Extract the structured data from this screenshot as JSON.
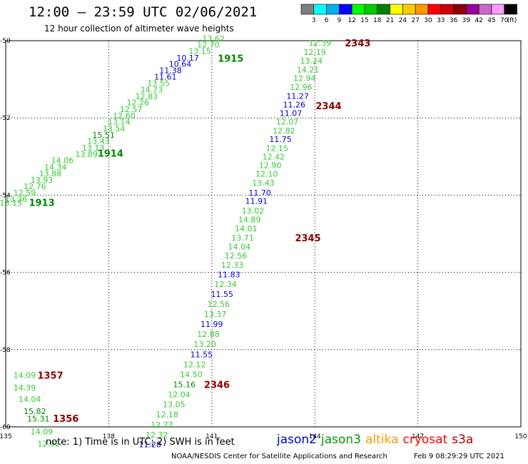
{
  "header": {
    "title": "12:00 — 23:59 UTC 02/06/2021",
    "subtitle": "12 hour collection of altimeter wave heights"
  },
  "footer": {
    "note": "note: 1) Time is in UTC; 2) SWH is in feet",
    "credit": "NOAA/NESDIS Center for Satellite Applications and Research",
    "timestamp": "Feb  9 08:29:29 UTC 2021"
  },
  "legend": {
    "satellites": [
      {
        "name": "jason2",
        "color": "#0000cc"
      },
      {
        "name": "jason3",
        "color": "#009900"
      },
      {
        "name": "altika",
        "color": "#ff9900"
      },
      {
        "name": "cryosat",
        "color": "#ff0000"
      },
      {
        "name": "s3a",
        "color": "#aa0000"
      }
    ]
  },
  "color_scale": {
    "labels": [
      "3",
      "6",
      "9",
      "12",
      "15",
      "18",
      "21",
      "24",
      "27",
      "30",
      "33",
      "36",
      "39",
      "42",
      "45",
      "70",
      "(ft)"
    ],
    "colors": [
      "#7f7f7f",
      "#00ffff",
      "#00b0f0",
      "#0000ff",
      "#00ff00",
      "#00cc00",
      "#008000",
      "#ffff00",
      "#ffcc00",
      "#ff9900",
      "#ff0000",
      "#cc0000",
      "#8b0000",
      "#990099",
      "#cc66cc",
      "#ff99ff",
      "#000000"
    ]
  },
  "chart_data": {
    "type": "scatter",
    "xlim": [
      135,
      150
    ],
    "ylim": [
      -60,
      -50
    ],
    "x_ticks": [
      {
        "v": 135,
        "label": "135"
      },
      {
        "v": 138,
        "label": "138"
      },
      {
        "v": 141,
        "label": "141"
      },
      {
        "v": 144,
        "label": "144"
      },
      {
        "v": 147,
        "label": "147"
      },
      {
        "v": 150,
        "label": "150"
      }
    ],
    "y_ticks": [
      {
        "v": -50,
        "label": "-50"
      },
      {
        "v": -52,
        "label": "-52"
      },
      {
        "v": -54,
        "label": "-54"
      },
      {
        "v": -56,
        "label": "-56"
      },
      {
        "v": -58,
        "label": "-58"
      },
      {
        "v": -60,
        "label": "-60"
      }
    ],
    "grid": true,
    "point_colors": {
      "g": "#33cc33",
      "b": "#0000cc",
      "dg": "#008800",
      "dr": "#880000"
    },
    "points": [
      {
        "x": 141.05,
        "y": -49.94,
        "t": "13.62",
        "c": "g"
      },
      {
        "x": 140.9,
        "y": -50.1,
        "t": "12.70",
        "c": "g"
      },
      {
        "x": 140.65,
        "y": -50.27,
        "t": "13.15",
        "c": "g"
      },
      {
        "x": 140.3,
        "y": -50.44,
        "t": "10.17",
        "c": "b"
      },
      {
        "x": 140.08,
        "y": -50.6,
        "t": "10.64",
        "c": "b"
      },
      {
        "x": 139.8,
        "y": -50.77,
        "t": "11.38",
        "c": "b"
      },
      {
        "x": 139.65,
        "y": -50.93,
        "t": "11.61",
        "c": "b"
      },
      {
        "x": 139.45,
        "y": -51.1,
        "t": "13.55",
        "c": "g"
      },
      {
        "x": 139.25,
        "y": -51.27,
        "t": "14.73",
        "c": "g"
      },
      {
        "x": 139.1,
        "y": -51.44,
        "t": "12.83",
        "c": "g"
      },
      {
        "x": 138.85,
        "y": -51.6,
        "t": "12.26",
        "c": "g"
      },
      {
        "x": 138.65,
        "y": -51.77,
        "t": "12.57",
        "c": "g"
      },
      {
        "x": 138.45,
        "y": -51.94,
        "t": "12.60",
        "c": "g"
      },
      {
        "x": 138.3,
        "y": -52.1,
        "t": "13.14",
        "c": "g"
      },
      {
        "x": 138.15,
        "y": -52.27,
        "t": "13.54",
        "c": "g"
      },
      {
        "x": 137.85,
        "y": -52.44,
        "t": "15.51",
        "c": "dg"
      },
      {
        "x": 137.7,
        "y": -52.6,
        "t": "13.43",
        "c": "g"
      },
      {
        "x": 137.55,
        "y": -52.77,
        "t": "13.13",
        "c": "g"
      },
      {
        "x": 137.35,
        "y": -52.94,
        "t": "13.89",
        "c": "g"
      },
      {
        "x": 136.65,
        "y": -53.1,
        "t": "14.06",
        "c": "g"
      },
      {
        "x": 136.45,
        "y": -53.27,
        "t": "14.34",
        "c": "g"
      },
      {
        "x": 136.3,
        "y": -53.44,
        "t": "13.88",
        "c": "g"
      },
      {
        "x": 136.05,
        "y": -53.6,
        "t": "13.93",
        "c": "g"
      },
      {
        "x": 135.85,
        "y": -53.77,
        "t": "12.76",
        "c": "g"
      },
      {
        "x": 135.55,
        "y": -53.94,
        "t": "12.59",
        "c": "g"
      },
      {
        "x": 135.3,
        "y": -54.1,
        "t": "13.36",
        "c": "g"
      },
      {
        "x": 135.15,
        "y": -54.2,
        "t": "13.15",
        "c": "g"
      },
      {
        "x": 144.15,
        "y": -50.06,
        "t": "12.39",
        "c": "g"
      },
      {
        "x": 144.0,
        "y": -50.3,
        "t": "12.19",
        "c": "g"
      },
      {
        "x": 143.9,
        "y": -50.52,
        "t": "13.24",
        "c": "g"
      },
      {
        "x": 143.8,
        "y": -50.75,
        "t": "14.21",
        "c": "g"
      },
      {
        "x": 143.7,
        "y": -50.97,
        "t": "12.94",
        "c": "g"
      },
      {
        "x": 143.6,
        "y": -51.2,
        "t": "12.96",
        "c": "g"
      },
      {
        "x": 143.5,
        "y": -51.43,
        "t": "11.27",
        "c": "b"
      },
      {
        "x": 143.4,
        "y": -51.65,
        "t": "11.26",
        "c": "b"
      },
      {
        "x": 143.3,
        "y": -51.88,
        "t": "11.07",
        "c": "b"
      },
      {
        "x": 143.2,
        "y": -52.1,
        "t": "12.07",
        "c": "g"
      },
      {
        "x": 143.1,
        "y": -52.33,
        "t": "12.82",
        "c": "g"
      },
      {
        "x": 143.0,
        "y": -52.55,
        "t": "11.75",
        "c": "b"
      },
      {
        "x": 142.9,
        "y": -52.78,
        "t": "12.15",
        "c": "g"
      },
      {
        "x": 142.8,
        "y": -53.0,
        "t": "12.42",
        "c": "g"
      },
      {
        "x": 142.7,
        "y": -53.23,
        "t": "12.90",
        "c": "g"
      },
      {
        "x": 142.6,
        "y": -53.45,
        "t": "12.10",
        "c": "g"
      },
      {
        "x": 142.5,
        "y": -53.68,
        "t": "13.43",
        "c": "g"
      },
      {
        "x": 142.4,
        "y": -53.94,
        "t": "11.70",
        "c": "b"
      },
      {
        "x": 142.3,
        "y": -54.15,
        "t": "11.91",
        "c": "b"
      },
      {
        "x": 142.2,
        "y": -54.4,
        "t": "13.02",
        "c": "g"
      },
      {
        "x": 142.1,
        "y": -54.63,
        "t": "14.89",
        "c": "g"
      },
      {
        "x": 142.0,
        "y": -54.86,
        "t": "14.01",
        "c": "g"
      },
      {
        "x": 141.9,
        "y": -55.1,
        "t": "13.71",
        "c": "g"
      },
      {
        "x": 141.8,
        "y": -55.33,
        "t": "14.04",
        "c": "g"
      },
      {
        "x": 141.7,
        "y": -55.56,
        "t": "12.56",
        "c": "g"
      },
      {
        "x": 141.6,
        "y": -55.8,
        "t": "12.33",
        "c": "g"
      },
      {
        "x": 141.5,
        "y": -56.05,
        "t": "11.83",
        "c": "b"
      },
      {
        "x": 141.4,
        "y": -56.3,
        "t": "12.34",
        "c": "g"
      },
      {
        "x": 141.3,
        "y": -56.56,
        "t": "11.55",
        "c": "b"
      },
      {
        "x": 141.2,
        "y": -56.82,
        "t": "12.56",
        "c": "g"
      },
      {
        "x": 141.1,
        "y": -57.08,
        "t": "13.37",
        "c": "g"
      },
      {
        "x": 141.0,
        "y": -57.34,
        "t": "11.99",
        "c": "b"
      },
      {
        "x": 140.9,
        "y": -57.6,
        "t": "12.88",
        "c": "g"
      },
      {
        "x": 140.8,
        "y": -57.86,
        "t": "13.20",
        "c": "g"
      },
      {
        "x": 140.7,
        "y": -58.12,
        "t": "11.55",
        "c": "b"
      },
      {
        "x": 140.5,
        "y": -58.38,
        "t": "12.12",
        "c": "g"
      },
      {
        "x": 140.4,
        "y": -58.64,
        "t": "14.50",
        "c": "g"
      },
      {
        "x": 140.2,
        "y": -58.9,
        "t": "15.16",
        "c": "dg"
      },
      {
        "x": 140.05,
        "y": -59.16,
        "t": "12.04",
        "c": "g"
      },
      {
        "x": 139.9,
        "y": -59.42,
        "t": "13.05",
        "c": "g"
      },
      {
        "x": 139.7,
        "y": -59.68,
        "t": "12.18",
        "c": "g"
      },
      {
        "x": 139.55,
        "y": -59.94,
        "t": "12.77",
        "c": "g"
      },
      {
        "x": 139.4,
        "y": -60.2,
        "t": "12.32",
        "c": "g"
      },
      {
        "x": 139.2,
        "y": -60.45,
        "t": "11.28",
        "c": "b"
      },
      {
        "x": 135.55,
        "y": -58.66,
        "t": "14.09",
        "c": "g"
      },
      {
        "x": 135.55,
        "y": -58.98,
        "t": "14.39",
        "c": "g"
      },
      {
        "x": 135.7,
        "y": -59.28,
        "t": "14.04",
        "c": "g"
      },
      {
        "x": 135.85,
        "y": -59.59,
        "t": "15.82",
        "c": "dg"
      },
      {
        "x": 135.95,
        "y": -59.79,
        "t": "15.31",
        "c": "dg"
      },
      {
        "x": 136.05,
        "y": -60.12,
        "t": "14.09",
        "c": "g"
      },
      {
        "x": 136.25,
        "y": -60.43,
        "t": "12.92",
        "c": "g"
      }
    ],
    "time_labels": [
      {
        "x": 141.55,
        "y": -50.45,
        "t": "1915",
        "c": "dg"
      },
      {
        "x": 138.05,
        "y": -52.91,
        "t": "1914",
        "c": "dg"
      },
      {
        "x": 136.05,
        "y": -54.19,
        "t": "1913",
        "c": "dg"
      },
      {
        "x": 145.25,
        "y": -50.06,
        "t": "2343",
        "c": "dr"
      },
      {
        "x": 144.4,
        "y": -51.68,
        "t": "2344",
        "c": "dr"
      },
      {
        "x": 143.8,
        "y": -55.1,
        "t": "2345",
        "c": "dr"
      },
      {
        "x": 141.15,
        "y": -58.9,
        "t": "2346",
        "c": "dr"
      },
      {
        "x": 136.3,
        "y": -58.66,
        "t": "1357",
        "c": "dr"
      },
      {
        "x": 136.75,
        "y": -59.78,
        "t": "1356",
        "c": "dr"
      }
    ]
  }
}
